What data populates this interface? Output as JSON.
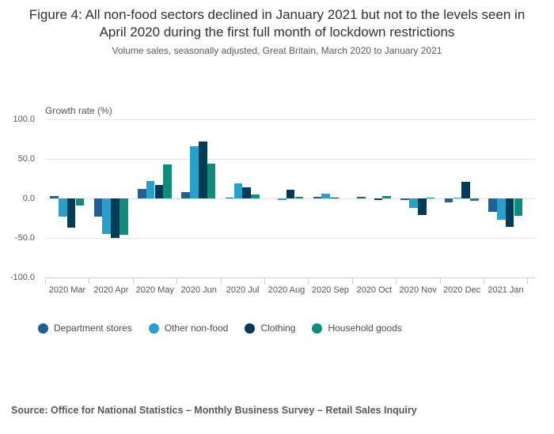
{
  "title": "Figure 4: All non-food sectors declined in January 2021 but not to the levels seen in April 2020 during the first full month of lockdown restrictions",
  "subtitle": "Volume sales, seasonally adjusted, Great Britain, March 2020 to January 2021",
  "source": "Source: Office for National Statistics – Monthly Business Survey – Retail Sales Inquiry",
  "chart_data": {
    "type": "bar",
    "title": "Figure 4: All non-food sectors declined in January 2021 but not to the levels seen in April 2020 during the first full month of lockdown restrictions",
    "subtitle": "Volume sales, seasonally adjusted, Great Britain, March 2020 to January 2021",
    "ylabel": "Growth rate (%)",
    "xlabel": "",
    "ylim": [
      -100,
      100
    ],
    "yticks": [
      100,
      50,
      0,
      -50,
      -100
    ],
    "ytick_labels": [
      "100.0",
      "50.0",
      "0.0",
      "-50.0",
      "-100.0"
    ],
    "grid": true,
    "legend_position": "bottom",
    "categories": [
      "2020 Mar",
      "2020 Apr",
      "2020 May",
      "2020 Jun",
      "2020 Jul",
      "2020 Aug",
      "2020 Sep",
      "2020 Oct",
      "2020 Nov",
      "2020 Dec",
      "2021 Jan"
    ],
    "series": [
      {
        "name": "Department stores",
        "color": "#206095",
        "values": [
          3,
          -23,
          12,
          8,
          1,
          0,
          2,
          2,
          -2,
          -4.5,
          -17
        ]
      },
      {
        "name": "Other non-food",
        "color": "#27a0cc",
        "values": [
          -23,
          -45,
          22,
          66,
          19,
          -1.5,
          6.5,
          0,
          -12,
          1.5,
          -27
        ]
      },
      {
        "name": "Clothing",
        "color": "#003c57",
        "values": [
          -37,
          -50,
          17,
          72,
          14.5,
          11,
          1.5,
          -1.5,
          -21,
          21,
          -36
        ]
      },
      {
        "name": "Household goods",
        "color": "#118c7b",
        "values": [
          -9,
          -46,
          43,
          44,
          5,
          2,
          0,
          3.5,
          1,
          -2.5,
          -22
        ]
      }
    ]
  }
}
